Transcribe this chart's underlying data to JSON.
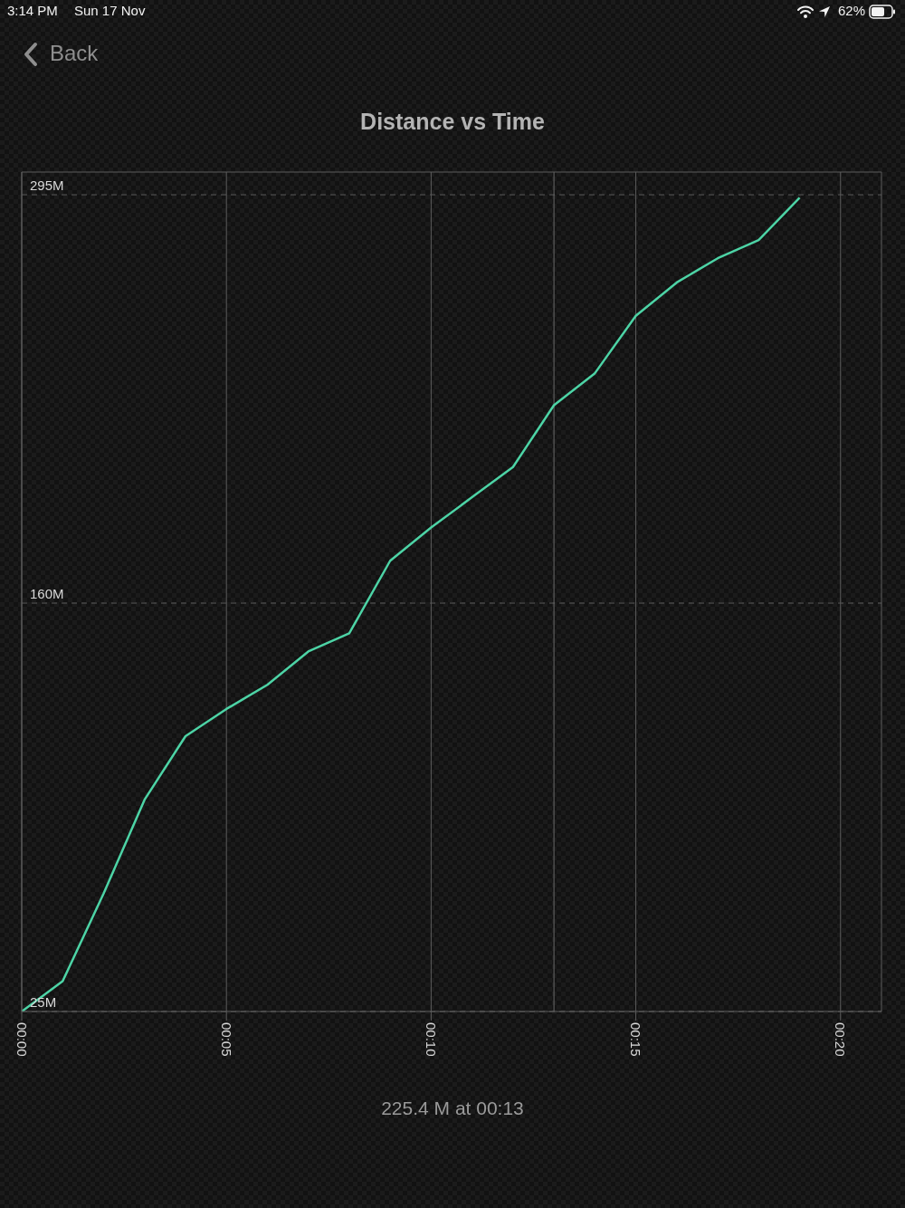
{
  "chart_data": {
    "type": "line",
    "title": "Distance vs Time",
    "x": [
      0,
      1,
      2,
      3,
      4,
      5,
      6,
      7,
      8,
      9,
      10,
      11,
      12,
      13,
      14,
      15,
      16,
      17,
      18,
      19
    ],
    "series": [
      {
        "color": "#4dd4a6",
        "values": [
          25,
          35,
          64,
          95,
          116,
          125,
          133,
          144,
          150,
          174,
          185,
          195,
          205,
          225.4,
          236,
          255,
          266,
          274,
          280,
          294
        ]
      }
    ],
    "xlim": [
      0,
      21
    ],
    "xticks": [
      {
        "value": 0,
        "label": "00:00"
      },
      {
        "value": 5,
        "label": "00:05"
      },
      {
        "value": 10,
        "label": "00:10"
      },
      {
        "value": 15,
        "label": "00:15"
      },
      {
        "value": 20,
        "label": "00:20"
      }
    ],
    "ylim": [
      25,
      302.5
    ],
    "yticks": [
      {
        "value": 25,
        "label": "25M"
      },
      {
        "value": 160,
        "label": "160M"
      },
      {
        "value": 295,
        "label": "295M"
      }
    ],
    "grid": true,
    "marker": "none",
    "line_style": "solid",
    "ref_lines": [
      {
        "axis": "x",
        "value": 13,
        "color": "#6a6a6a"
      }
    ],
    "annotations": [
      "3:14 PM",
      "Sun 17 Nov",
      "62%",
      "Back",
      "225.4 M at 00:13"
    ]
  }
}
